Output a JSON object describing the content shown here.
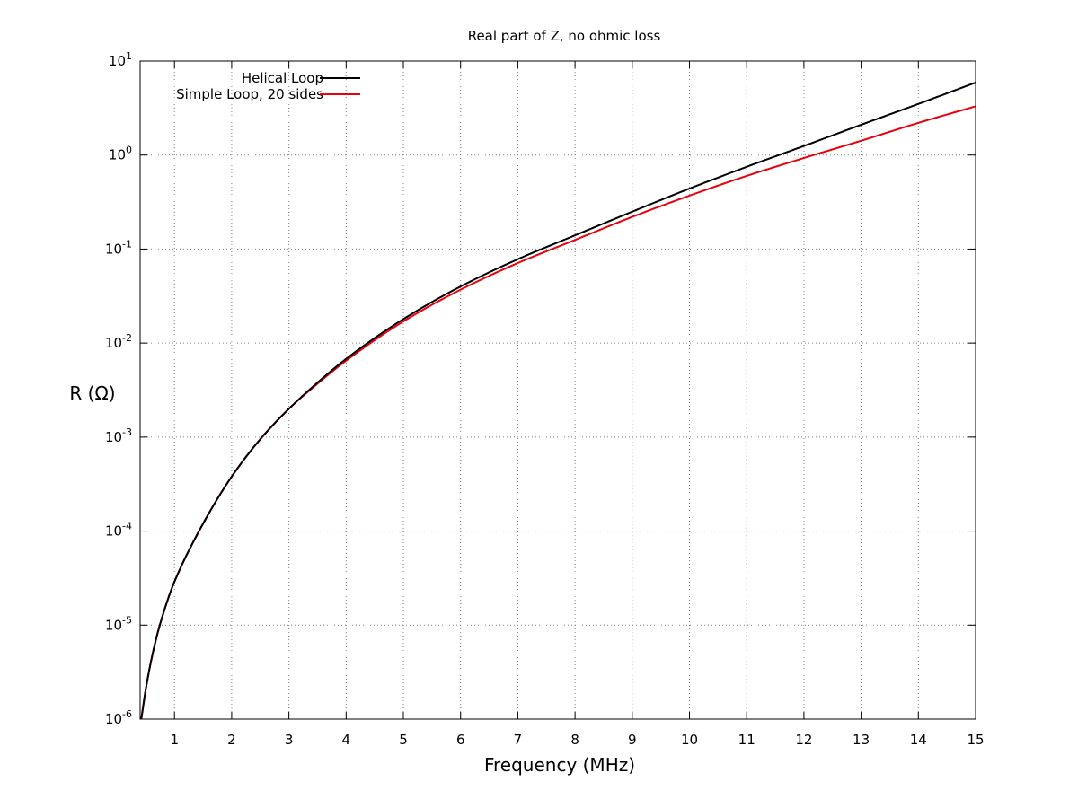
{
  "chart_data": {
    "type": "line",
    "title": "Real part of Z, no ohmic loss",
    "xlabel": "Frequency (MHz)",
    "ylabel": "R (Ω)",
    "xlim": [
      0.4,
      15
    ],
    "ylim": [
      1e-06,
      10
    ],
    "yscale": "log",
    "grid": true,
    "legend_position": "top-left",
    "x_ticks": [
      {
        "value": 1,
        "label": "1"
      },
      {
        "value": 2,
        "label": "2"
      },
      {
        "value": 3,
        "label": "3"
      },
      {
        "value": 4,
        "label": "4"
      },
      {
        "value": 5,
        "label": "5"
      },
      {
        "value": 6,
        "label": "6"
      },
      {
        "value": 7,
        "label": "7"
      },
      {
        "value": 8,
        "label": "8"
      },
      {
        "value": 9,
        "label": "9"
      },
      {
        "value": 10,
        "label": "10"
      },
      {
        "value": 11,
        "label": "11"
      },
      {
        "value": 12,
        "label": "12"
      },
      {
        "value": 13,
        "label": "13"
      },
      {
        "value": 14,
        "label": "14"
      },
      {
        "value": 15,
        "label": "15"
      }
    ],
    "y_ticks": [
      {
        "value": 1e-06,
        "base": "10",
        "exp": "-6"
      },
      {
        "value": 1e-05,
        "base": "10",
        "exp": "-5"
      },
      {
        "value": 0.0001,
        "base": "10",
        "exp": "-4"
      },
      {
        "value": 0.001,
        "base": "10",
        "exp": "-3"
      },
      {
        "value": 0.01,
        "base": "10",
        "exp": "-2"
      },
      {
        "value": 0.1,
        "base": "10",
        "exp": "-1"
      },
      {
        "value": 1,
        "base": "10",
        "exp": "0"
      },
      {
        "value": 10,
        "base": "10",
        "exp": "1"
      }
    ],
    "x": [
      0.42,
      0.5,
      0.6,
      0.7,
      0.8,
      0.9,
      1,
      1.5,
      2,
      2.5,
      3,
      3.5,
      4,
      5,
      6,
      7,
      8,
      9,
      10,
      11,
      12,
      13,
      14,
      15
    ],
    "series": [
      {
        "name": "Helical Loop",
        "color": "#000000",
        "values": [
          1e-06,
          2.1e-06,
          4.4e-06,
          8e-06,
          1.3e-05,
          2e-05,
          2.9e-05,
          0.00012,
          0.00038,
          0.00095,
          0.002,
          0.0038,
          0.0068,
          0.018,
          0.04,
          0.078,
          0.14,
          0.25,
          0.44,
          0.75,
          1.25,
          2.1,
          3.5,
          5.9
        ]
      },
      {
        "name": "Simple Loop, 20 sides",
        "color": "#e8000b",
        "values": [
          1e-06,
          2.1e-06,
          4.4e-06,
          8e-06,
          1.3e-05,
          2e-05,
          2.9e-05,
          0.00012,
          0.00038,
          0.00095,
          0.002,
          0.0037,
          0.0065,
          0.017,
          0.037,
          0.071,
          0.125,
          0.22,
          0.37,
          0.6,
          0.93,
          1.42,
          2.2,
          3.3
        ]
      }
    ]
  }
}
